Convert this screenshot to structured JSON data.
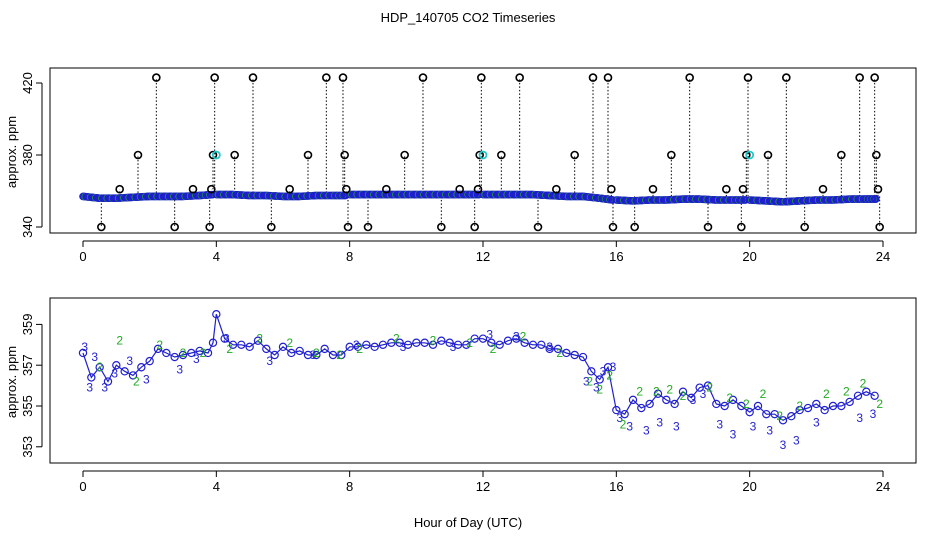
{
  "title": "HDP_140705  CO2 Timeseries",
  "xlabel": "Hour of Day (UTC)",
  "colors": {
    "axis": "#000000",
    "series_main": "#1f1fd0",
    "series_alt": "#22aa22",
    "outlier": "#000000",
    "highlight": "#22c8c8"
  },
  "chart_data": [
    {
      "type": "scatter",
      "panel": "top",
      "ylabel": "approx. ppm",
      "xlim": [
        0,
        24
      ],
      "ylim": [
        340,
        425
      ],
      "x_ticks": [
        0,
        4,
        8,
        12,
        16,
        20,
        24
      ],
      "y_ticks": [
        340,
        380,
        420
      ],
      "grid": false,
      "segments": [
        {
          "x": [
            0.0,
            0.5,
            1.0,
            1.5,
            2.0,
            2.5,
            3.0,
            3.5,
            3.9
          ],
          "y": [
            357,
            356,
            356,
            356.5,
            357,
            357,
            357,
            357.5,
            358
          ]
        },
        {
          "x": [
            4.0,
            4.5,
            5.0,
            5.5,
            6.0,
            6.5,
            7.0,
            7.5,
            7.9
          ],
          "y": [
            358,
            358,
            357.5,
            357.5,
            357,
            357,
            357.5,
            357.5,
            357.5
          ]
        },
        {
          "x": [
            8.0,
            8.5,
            9.0,
            9.5,
            10.0,
            10.5,
            11.0,
            11.5,
            11.9
          ],
          "y": [
            358,
            358,
            358,
            358,
            358,
            358,
            358,
            358,
            358
          ]
        },
        {
          "x": [
            12.0,
            12.5,
            13.0,
            13.5,
            14.0,
            14.5,
            15.0,
            15.5,
            15.9
          ],
          "y": [
            358,
            358,
            358,
            358,
            357.5,
            357,
            357,
            356,
            355
          ]
        },
        {
          "x": [
            16.0,
            16.5,
            17.0,
            17.5,
            18.0,
            18.5,
            19.0,
            19.5,
            19.9
          ],
          "y": [
            355,
            354.5,
            355,
            355,
            355.5,
            355.5,
            355,
            355,
            355
          ]
        },
        {
          "x": [
            20.0,
            20.5,
            21.0,
            21.5,
            22.0,
            22.5,
            23.0,
            23.5,
            23.8
          ],
          "y": [
            355,
            354.5,
            354,
            354.5,
            355,
            355,
            355.5,
            355.5,
            355.5
          ]
        }
      ],
      "outliers": [
        {
          "x": 0.55,
          "y": 340
        },
        {
          "x": 1.1,
          "y": 361
        },
        {
          "x": 1.65,
          "y": 380
        },
        {
          "x": 2.2,
          "y": 423
        },
        {
          "x": 2.75,
          "y": 340
        },
        {
          "x": 3.3,
          "y": 361
        },
        {
          "x": 3.8,
          "y": 340
        },
        {
          "x": 3.85,
          "y": 361
        },
        {
          "x": 3.9,
          "y": 380
        },
        {
          "x": 3.95,
          "y": 423
        },
        {
          "x": 4.55,
          "y": 380
        },
        {
          "x": 5.1,
          "y": 423
        },
        {
          "x": 5.65,
          "y": 340
        },
        {
          "x": 6.2,
          "y": 361
        },
        {
          "x": 6.75,
          "y": 380
        },
        {
          "x": 7.3,
          "y": 423
        },
        {
          "x": 7.8,
          "y": 423
        },
        {
          "x": 7.85,
          "y": 380
        },
        {
          "x": 7.9,
          "y": 361
        },
        {
          "x": 7.95,
          "y": 340
        },
        {
          "x": 8.55,
          "y": 340
        },
        {
          "x": 9.1,
          "y": 361
        },
        {
          "x": 9.65,
          "y": 380
        },
        {
          "x": 10.2,
          "y": 423
        },
        {
          "x": 10.75,
          "y": 340
        },
        {
          "x": 11.3,
          "y": 361
        },
        {
          "x": 11.75,
          "y": 340
        },
        {
          "x": 11.85,
          "y": 361
        },
        {
          "x": 11.9,
          "y": 380
        },
        {
          "x": 11.95,
          "y": 423
        },
        {
          "x": 12.55,
          "y": 380
        },
        {
          "x": 13.1,
          "y": 423
        },
        {
          "x": 13.65,
          "y": 340
        },
        {
          "x": 14.2,
          "y": 361
        },
        {
          "x": 14.75,
          "y": 380
        },
        {
          "x": 15.3,
          "y": 423
        },
        {
          "x": 15.75,
          "y": 423
        },
        {
          "x": 15.85,
          "y": 361
        },
        {
          "x": 15.9,
          "y": 340
        },
        {
          "x": 16.55,
          "y": 340
        },
        {
          "x": 17.1,
          "y": 361
        },
        {
          "x": 17.65,
          "y": 380
        },
        {
          "x": 18.2,
          "y": 423
        },
        {
          "x": 18.75,
          "y": 340
        },
        {
          "x": 19.3,
          "y": 361
        },
        {
          "x": 19.75,
          "y": 340
        },
        {
          "x": 19.8,
          "y": 361
        },
        {
          "x": 19.9,
          "y": 380
        },
        {
          "x": 19.95,
          "y": 423
        },
        {
          "x": 20.55,
          "y": 380
        },
        {
          "x": 21.1,
          "y": 423
        },
        {
          "x": 21.65,
          "y": 340
        },
        {
          "x": 22.2,
          "y": 361
        },
        {
          "x": 22.75,
          "y": 380
        },
        {
          "x": 23.3,
          "y": 423
        },
        {
          "x": 23.75,
          "y": 423
        },
        {
          "x": 23.8,
          "y": 380
        },
        {
          "x": 23.85,
          "y": 361
        },
        {
          "x": 23.9,
          "y": 340
        }
      ],
      "highlights": [
        {
          "x": 4.0,
          "y": 380
        },
        {
          "x": 12.0,
          "y": 380
        },
        {
          "x": 20.0,
          "y": 380
        }
      ]
    },
    {
      "type": "line",
      "panel": "bottom",
      "ylabel": "approx. ppm",
      "xlim": [
        0,
        24
      ],
      "ylim": [
        352.5,
        360
      ],
      "x_ticks": [
        0,
        4,
        8,
        12,
        16,
        20,
        24
      ],
      "y_ticks": [
        353,
        355,
        357,
        359
      ],
      "grid": false,
      "series": [
        {
          "marker": "o",
          "x": [
            0.0,
            0.25,
            0.5,
            0.75,
            1.0,
            1.25,
            1.5,
            1.75,
            2.0,
            2.25,
            2.5,
            2.75,
            3.0,
            3.25,
            3.5,
            3.75,
            3.9,
            4.0,
            4.25,
            4.5,
            4.75,
            5.0,
            5.25,
            5.5,
            5.75,
            6.0,
            6.25,
            6.5,
            6.75,
            7.0,
            7.25,
            7.5,
            7.75,
            8.0,
            8.25,
            8.5,
            8.75,
            9.0,
            9.25,
            9.5,
            9.75,
            10.0,
            10.25,
            10.5,
            10.75,
            11.0,
            11.25,
            11.5,
            11.75,
            12.0,
            12.25,
            12.5,
            12.75,
            13.0,
            13.25,
            13.5,
            13.75,
            14.0,
            14.25,
            14.5,
            14.75,
            15.0,
            15.25,
            15.5,
            15.75,
            16.0,
            16.25,
            16.5,
            16.75,
            17.0,
            17.25,
            17.5,
            17.75,
            18.0,
            18.25,
            18.5,
            18.75,
            19.0,
            19.25,
            19.5,
            19.75,
            20.0,
            20.25,
            20.5,
            20.75,
            21.0,
            21.25,
            21.5,
            21.75,
            22.0,
            22.25,
            22.5,
            22.75,
            23.0,
            23.25,
            23.5,
            23.75
          ],
          "y": [
            357.6,
            356.4,
            356.9,
            356.2,
            357.0,
            356.7,
            356.5,
            356.9,
            357.2,
            357.8,
            357.6,
            357.4,
            357.5,
            357.6,
            357.7,
            357.6,
            358.1,
            359.5,
            358.3,
            358.0,
            358.0,
            357.9,
            358.2,
            357.8,
            357.5,
            357.9,
            357.6,
            357.7,
            357.5,
            357.5,
            357.8,
            357.5,
            357.5,
            357.9,
            357.9,
            358.0,
            357.9,
            358.0,
            358.1,
            358.1,
            358.0,
            358.1,
            358.1,
            358.0,
            358.2,
            358.1,
            358.0,
            358.0,
            358.3,
            358.3,
            358.1,
            358.0,
            358.2,
            358.3,
            358.1,
            358.0,
            358.0,
            357.8,
            357.8,
            357.6,
            357.5,
            357.4,
            356.7,
            356.3,
            356.9,
            354.8,
            354.6,
            355.3,
            354.9,
            355.1,
            355.6,
            355.3,
            355.1,
            355.7,
            355.4,
            355.9,
            356.0,
            355.1,
            355.0,
            355.3,
            355.0,
            354.7,
            355.0,
            354.6,
            354.6,
            354.3,
            354.5,
            354.8,
            354.9,
            355.1,
            354.8,
            355.0,
            355.0,
            355.2,
            355.5,
            355.7,
            355.5
          ]
        },
        {
          "marker": "3",
          "x": [
            0.05,
            0.2,
            0.35,
            0.65,
            0.95,
            1.4,
            1.9,
            2.9,
            3.4,
            4.3,
            5.6,
            6.9,
            8.2,
            9.6,
            11.1,
            12.2,
            13.0,
            14.0,
            15.1,
            15.4,
            15.6,
            15.9,
            16.1,
            16.4,
            16.9,
            17.3,
            17.8,
            18.3,
            18.6,
            19.1,
            19.5,
            20.1,
            20.6,
            21.0,
            21.4,
            22.0,
            23.3,
            23.7
          ],
          "y": [
            357.9,
            355.9,
            357.4,
            355.9,
            356.6,
            357.2,
            356.3,
            356.8,
            357.3,
            358.3,
            357.2,
            357.5,
            358.0,
            357.9,
            357.9,
            358.5,
            358.4,
            357.9,
            356.2,
            355.9,
            356.7,
            356.9,
            354.4,
            354.0,
            353.8,
            354.2,
            354.0,
            355.3,
            355.6,
            354.1,
            353.6,
            354.0,
            353.8,
            353.1,
            353.3,
            354.2,
            354.4,
            354.6
          ]
        },
        {
          "marker": "2",
          "x": [
            0.5,
            1.1,
            1.6,
            2.3,
            3.0,
            3.6,
            4.4,
            5.3,
            6.2,
            7.0,
            7.7,
            8.3,
            9.4,
            10.5,
            11.6,
            12.3,
            13.2,
            14.3,
            15.2,
            15.5,
            15.8,
            16.2,
            16.7,
            17.2,
            17.6,
            18.0,
            18.8,
            19.4,
            19.9,
            20.4,
            20.9,
            21.5,
            22.3,
            22.9,
            23.4,
            23.9
          ],
          "y": [
            356.9,
            358.2,
            356.2,
            358.0,
            357.6,
            357.6,
            357.8,
            358.3,
            358.1,
            357.6,
            357.5,
            357.8,
            358.3,
            358.2,
            358.1,
            357.8,
            358.4,
            357.6,
            356.2,
            355.8,
            356.5,
            354.1,
            355.7,
            355.7,
            355.8,
            355.5,
            355.9,
            355.4,
            355.1,
            355.6,
            354.5,
            355.0,
            355.6,
            355.7,
            356.1,
            355.1
          ]
        }
      ]
    }
  ]
}
